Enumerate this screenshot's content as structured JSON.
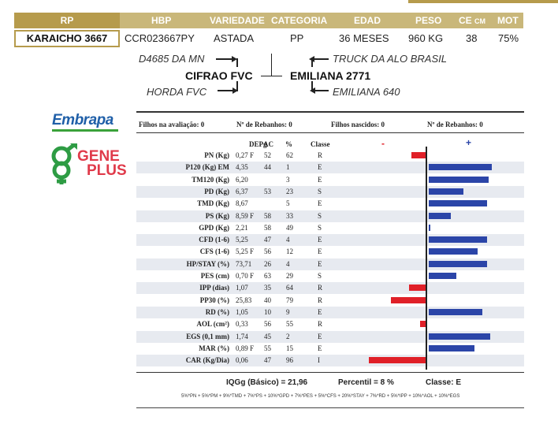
{
  "header": {
    "rp": "RP",
    "hbp": "HBP",
    "variedade": "VARIEDADE",
    "categoria": "CATEGORIA",
    "edad": "EDAD",
    "peso": "PESO",
    "ce_main": "CE",
    "ce_unit": "CM",
    "mot": "MOT"
  },
  "animal": {
    "rp": "KARAICHO 3667",
    "hbp": "CCR023667PY",
    "variedade": "ASTADA",
    "categoria": "PP",
    "edad": "36 MESES",
    "peso": "960 KG",
    "ce": "38",
    "mot": "75%"
  },
  "pedigree": {
    "sire_sire": "D4685 DA MN",
    "sire": "CIFRAO FVC",
    "sire_dam": "HORDA FVC",
    "dam_sire": "TRUCK DA ALO BRASIL",
    "dam": "EMILIANA 2771",
    "dam_dam": "EMILIANA 640"
  },
  "logos": {
    "embrapa": "Embrapa",
    "geneplus_1": "GENE",
    "geneplus_2": "PLUS"
  },
  "summary": {
    "filhos_avaliacao": "Filhos na avaliação: 0",
    "rebanhos_1": "Nº de Rebanhos: 0",
    "filhos_nascidos": "Filhos nascidos: 0",
    "rebanhos_2": "Nº de Rebanhos: 0"
  },
  "columns": {
    "dep": "DEPg",
    "ac": "AC",
    "pct": "%",
    "classe": "Classe",
    "minus": "-",
    "plus": "+"
  },
  "chart_data": {
    "type": "bar",
    "orientation": "horizontal",
    "categories": [
      "PN (Kg)",
      "P120 (Kg) EM",
      "TM120 (Kg)",
      "PD (Kg)",
      "TMD (Kg)",
      "PS (Kg)",
      "GPD (Kg)",
      "CFD (1-6)",
      "CFS (1-6)",
      "HP/STAY (%)",
      "PES (cm)",
      "IPP (dias)",
      "PP30 (%)",
      "RD (%)",
      "AOL (cm²)",
      "EGS (0,1 mm)",
      "MAR (%)",
      "CAR (Kg/Dia)"
    ],
    "rows": [
      {
        "trait": "PN (Kg)",
        "dep": "0,27 F",
        "ac": "52",
        "pct": "62",
        "classe": "R",
        "bar": -0.25
      },
      {
        "trait": "P120 (Kg) EM",
        "dep": "4,35",
        "ac": "44",
        "pct": "1",
        "classe": "E",
        "bar": 1.0
      },
      {
        "trait": "TM120 (Kg)",
        "dep": "6,20",
        "ac": "",
        "pct": "3",
        "classe": "E",
        "bar": 0.95
      },
      {
        "trait": "PD (Kg)",
        "dep": "6,37",
        "ac": "53",
        "pct": "23",
        "classe": "S",
        "bar": 0.55
      },
      {
        "trait": "TMD (Kg)",
        "dep": "8,67",
        "ac": "",
        "pct": "5",
        "classe": "E",
        "bar": 0.92
      },
      {
        "trait": "PS (Kg)",
        "dep": "8,59 F",
        "ac": "58",
        "pct": "33",
        "classe": "S",
        "bar": 0.35
      },
      {
        "trait": "GPD (Kg)",
        "dep": "2,21",
        "ac": "58",
        "pct": "49",
        "classe": "S",
        "bar": 0.03
      },
      {
        "trait": "CFD (1-6)",
        "dep": "5,25",
        "ac": "47",
        "pct": "4",
        "classe": "E",
        "bar": 0.93
      },
      {
        "trait": "CFS (1-6)",
        "dep": "5,25 F",
        "ac": "56",
        "pct": "12",
        "classe": "E",
        "bar": 0.78
      },
      {
        "trait": "HP/STAY (%)",
        "dep": "73,71",
        "ac": "26",
        "pct": "4",
        "classe": "E",
        "bar": 0.93
      },
      {
        "trait": "PES (cm)",
        "dep": "0,70 F",
        "ac": "63",
        "pct": "29",
        "classe": "S",
        "bar": 0.44
      },
      {
        "trait": "IPP (dias)",
        "dep": "1,07",
        "ac": "35",
        "pct": "64",
        "classe": "R",
        "bar": -0.28
      },
      {
        "trait": "PP30 (%)",
        "dep": "25,83",
        "ac": "40",
        "pct": "79",
        "classe": "R",
        "bar": -0.58
      },
      {
        "trait": "RD (%)",
        "dep": "1,05",
        "ac": "10",
        "pct": "9",
        "classe": "E",
        "bar": 0.85
      },
      {
        "trait": "AOL (cm²)",
        "dep": "0,33",
        "ac": "56",
        "pct": "55",
        "classe": "R",
        "bar": -0.1
      },
      {
        "trait": "EGS (0,1 mm)",
        "dep": "1,74",
        "ac": "45",
        "pct": "2",
        "classe": "E",
        "bar": 0.98
      },
      {
        "trait": "MAR (%)",
        "dep": "0,89 F",
        "ac": "55",
        "pct": "15",
        "classe": "E",
        "bar": 0.73
      },
      {
        "trait": "CAR (Kg/Dia)",
        "dep": "0,06",
        "ac": "47",
        "pct": "96",
        "classe": "I",
        "bar": -0.93
      }
    ],
    "colors": {
      "negative": "#e02028",
      "positive": "#2b45a8"
    }
  },
  "footer": {
    "iqgg": "IQGg (Básico) = 21,96",
    "percentil": "Percentil = 8 %",
    "classe": "Classe: E",
    "formula": "5%*PN + 5%*PM + 9%*TMD + 7%*PS + 10%*GPD + 7%*PES + 5%*CFS + 20%*STAY + 7%*RD + 5%*IPP + 10%*AOL + 10%*EGS"
  },
  "colors": {
    "gold": "#b69b4c",
    "gold_light": "#c9b77a"
  }
}
